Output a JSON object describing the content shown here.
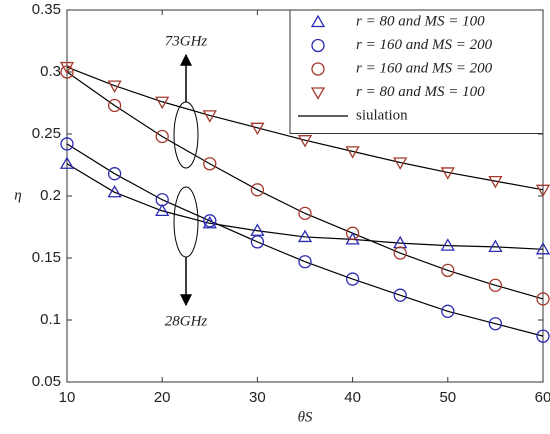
{
  "chart_data": {
    "type": "line",
    "xlabel": "θS",
    "ylabel": "η",
    "x": [
      10,
      15,
      20,
      25,
      30,
      35,
      40,
      45,
      50,
      55,
      60
    ],
    "series": [
      {
        "name": "r = 80 and MS = 100",
        "color": "#2b2bb0",
        "marker": "triangle-up",
        "values": [
          0.226,
          0.203,
          0.188,
          0.178,
          0.172,
          0.167,
          0.165,
          0.162,
          0.16,
          0.159,
          0.157
        ]
      },
      {
        "name": "r = 160 and MS = 200",
        "color": "#2b2bb0",
        "marker": "circle",
        "values": [
          0.242,
          0.218,
          0.197,
          0.18,
          0.163,
          0.147,
          0.133,
          0.12,
          0.107,
          0.097,
          0.087
        ]
      },
      {
        "name": "r = 160 and MS = 200",
        "color": "#a33a2c",
        "marker": "circle",
        "values": [
          0.3,
          0.273,
          0.248,
          0.226,
          0.205,
          0.186,
          0.17,
          0.154,
          0.14,
          0.128,
          0.117
        ]
      },
      {
        "name": "r = 80 and MS = 100",
        "color": "#a33a2c",
        "marker": "triangle-down",
        "values": [
          0.304,
          0.289,
          0.276,
          0.265,
          0.255,
          0.245,
          0.236,
          0.227,
          0.219,
          0.212,
          0.205
        ]
      }
    ],
    "line_name": "siulation",
    "line_color": "#000000",
    "annotations": [
      "73GHz",
      "28GHz"
    ],
    "xlim": [
      10,
      60
    ],
    "xticks": [
      10,
      20,
      30,
      40,
      50,
      60
    ],
    "ylim": [
      0.05,
      0.35
    ],
    "yticks": [
      0.05,
      0.1,
      0.15,
      0.2,
      0.25,
      0.3,
      0.35
    ],
    "legend": "upper right"
  }
}
